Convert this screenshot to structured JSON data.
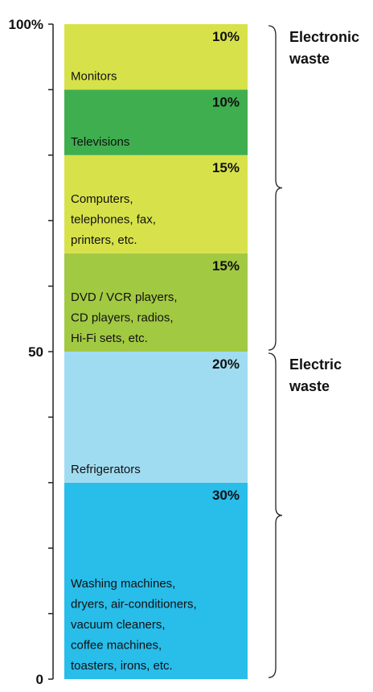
{
  "chart_data": {
    "type": "bar",
    "stacked": true,
    "orientation": "vertical",
    "ylim": [
      0,
      100
    ],
    "y_ticks": [
      {
        "value": 0,
        "label": "0"
      },
      {
        "value": 50,
        "label": "50"
      },
      {
        "value": 100,
        "label": "100%"
      }
    ],
    "y_minor_tick_step": 10,
    "segments": [
      {
        "pct_label": "30%",
        "value": 30,
        "label": [
          "Washing machines,",
          "dryers, air-conditioners,",
          "vacuum cleaners,",
          "coffee machines,",
          "toasters, irons, etc."
        ],
        "color": "#29bdea"
      },
      {
        "pct_label": "20%",
        "value": 20,
        "label": [
          "Refrigerators"
        ],
        "color": "#a0dcf1"
      },
      {
        "pct_label": "15%",
        "value": 15,
        "label": [
          "DVD / VCR players,",
          "CD players, radios,",
          "Hi-Fi sets, etc."
        ],
        "color": "#a2c942"
      },
      {
        "pct_label": "15%",
        "value": 15,
        "label": [
          "Computers,",
          "telephones, fax,",
          "printers, etc."
        ],
        "color": "#d7e24a"
      },
      {
        "pct_label": "10%",
        "value": 10,
        "label": [
          "Televisions"
        ],
        "color": "#3fae4f"
      },
      {
        "pct_label": "10%",
        "value": 10,
        "label": [
          "Monitors"
        ],
        "color": "#d7e24a"
      }
    ],
    "groups": [
      {
        "name": [
          "Electronic",
          "waste"
        ],
        "from": 50,
        "to": 100
      },
      {
        "name": [
          "Electric",
          "waste"
        ],
        "from": 0,
        "to": 50
      }
    ]
  }
}
